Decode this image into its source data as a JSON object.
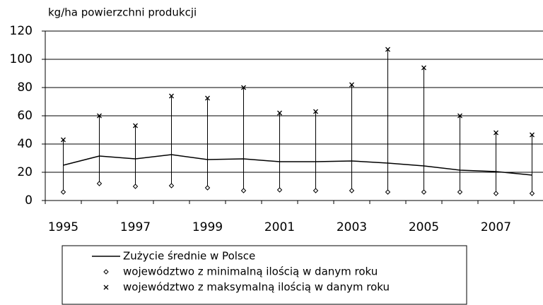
{
  "chart_data": {
    "type": "line",
    "y_label": "kg/ha powierzchni produkcji",
    "categories": [
      "1995",
      null,
      "1997",
      null,
      "1999",
      null,
      "2001",
      null,
      "2003",
      null,
      "2005",
      null,
      "2007",
      null
    ],
    "series": [
      {
        "name": "Zużycie średnie w Polsce",
        "color": "#000000",
        "marker": "line",
        "values": [
          25,
          31.5,
          29.5,
          32.5,
          29,
          29.5,
          27.5,
          27.5,
          28,
          26.5,
          24.5,
          21.5,
          20.5,
          18
        ]
      },
      {
        "name": "województwo z minimalną ilością w danym roku",
        "color": "#000000",
        "marker": "diamond",
        "values": [
          6,
          12,
          10,
          10.5,
          9,
          7,
          7.5,
          7,
          7,
          6,
          6,
          6,
          5,
          5
        ]
      },
      {
        "name": "województwo z maksymalną ilością w danym roku",
        "color": "#000000",
        "marker": "x",
        "values": [
          43,
          60,
          53,
          74,
          72.5,
          80,
          62,
          63,
          82,
          107,
          94,
          60,
          48,
          46.5
        ]
      }
    ],
    "ylim": [
      0,
      120
    ],
    "yticks": [
      0,
      20,
      40,
      60,
      80,
      100,
      120
    ],
    "grid": true,
    "range_lines": true
  }
}
